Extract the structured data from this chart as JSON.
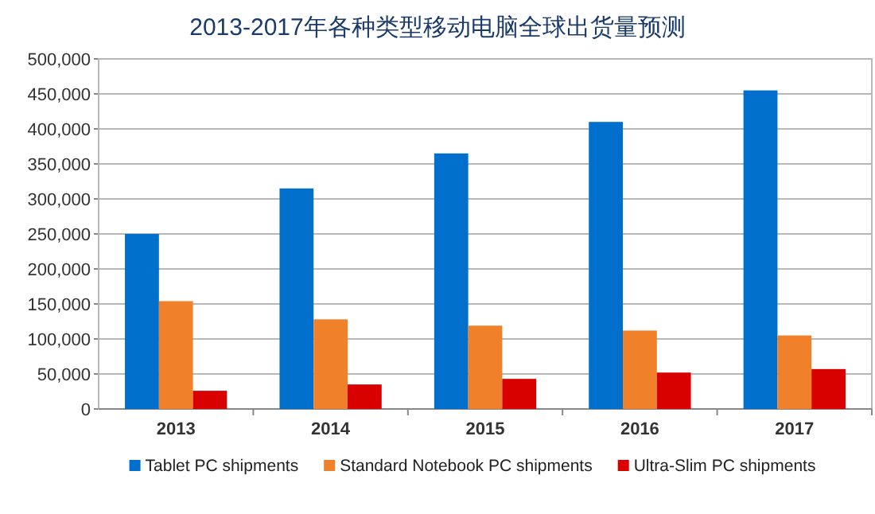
{
  "chart_data": {
    "type": "bar",
    "title": "2013-2017年各种类型移动电脑全球出货量预测",
    "categories": [
      "2013",
      "2014",
      "2015",
      "2016",
      "2017"
    ],
    "series": [
      {
        "name": "Tablet PC shipments",
        "color": "#0070cc",
        "values": [
          250000,
          315000,
          365000,
          410000,
          455000
        ]
      },
      {
        "name": "Standard Notebook PC shipments",
        "color": "#f0802a",
        "values": [
          154000,
          128000,
          119000,
          112000,
          105000
        ]
      },
      {
        "name": "Ultra-Slim PC shipments",
        "color": "#d90000",
        "values": [
          26000,
          35000,
          43000,
          52000,
          57000
        ]
      }
    ],
    "ylim": [
      0,
      500000
    ],
    "yticks": [
      {
        "value": 0,
        "label": "0"
      },
      {
        "value": 50000,
        "label": "50,000"
      },
      {
        "value": 100000,
        "label": "100,000"
      },
      {
        "value": 150000,
        "label": "150,000"
      },
      {
        "value": 200000,
        "label": "200,000"
      },
      {
        "value": 250000,
        "label": "250,000"
      },
      {
        "value": 300000,
        "label": "300,000"
      },
      {
        "value": 350000,
        "label": "350,000"
      },
      {
        "value": 400000,
        "label": "400,000"
      },
      {
        "value": 450000,
        "label": "450,000"
      },
      {
        "value": 500000,
        "label": "500,000"
      }
    ],
    "grid": "y",
    "legend": "bottom"
  }
}
